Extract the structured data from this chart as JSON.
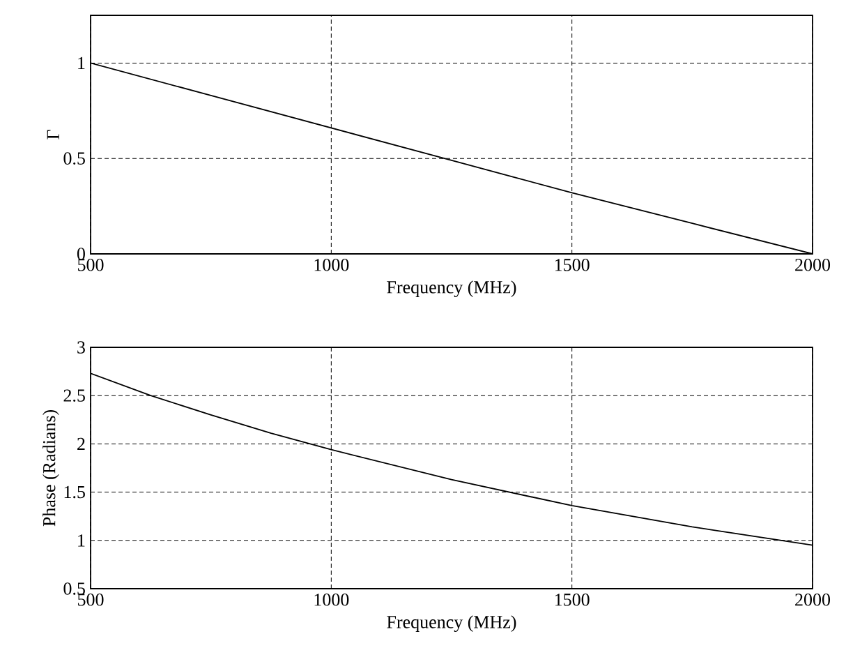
{
  "chart_data": [
    {
      "type": "line",
      "xlabel": "Frequency (MHz)",
      "ylabel": "Γ",
      "xlim": [
        500,
        2000
      ],
      "ylim": [
        0,
        1.25
      ],
      "xticks": [
        500,
        1000,
        1500,
        2000
      ],
      "yticks": [
        0,
        0.5,
        1
      ],
      "grid": true,
      "series": [
        {
          "color": "#000000",
          "x": [
            500,
            750,
            1000,
            1250,
            1500,
            1750,
            2000
          ],
          "values": [
            1.0,
            0.83,
            0.66,
            0.49,
            0.32,
            0.16,
            0.0
          ]
        }
      ]
    },
    {
      "type": "line",
      "xlabel": "Frequency (MHz)",
      "ylabel": "Phase (Radians)",
      "xlim": [
        500,
        2000
      ],
      "ylim": [
        0.5,
        3
      ],
      "xticks": [
        500,
        1000,
        1500,
        2000
      ],
      "yticks": [
        0.5,
        1,
        1.5,
        2,
        2.5,
        3
      ],
      "grid": true,
      "series": [
        {
          "color": "#000000",
          "x": [
            500,
            625,
            750,
            875,
            1000,
            1250,
            1500,
            1750,
            2000
          ],
          "values": [
            2.73,
            2.5,
            2.3,
            2.11,
            1.94,
            1.63,
            1.36,
            1.14,
            0.95
          ]
        }
      ]
    }
  ]
}
